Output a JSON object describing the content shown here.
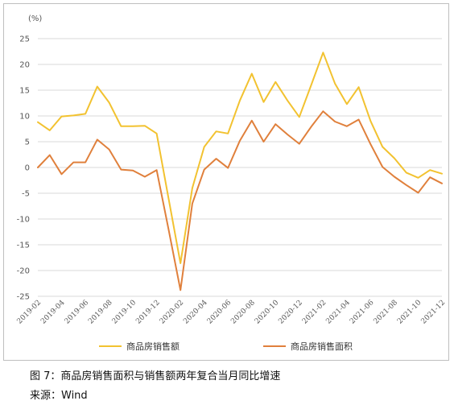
{
  "chart_data": {
    "type": "line",
    "unit": "(%)",
    "ylim": [
      -25,
      25
    ],
    "ytick_values": [
      25,
      20,
      15,
      10,
      5,
      0,
      -5,
      -10,
      -15,
      -20,
      -25
    ],
    "ytick_labels": [
      "25",
      "20",
      "15",
      "10",
      "5",
      "0",
      "-5",
      "-10",
      "-15",
      "-20",
      "-25"
    ],
    "grid": true,
    "legend_position": "bottom",
    "x": [
      "2019-02",
      "2019-03",
      "2019-04",
      "2019-05",
      "2019-06",
      "2019-07",
      "2019-08",
      "2019-09",
      "2019-10",
      "2019-11",
      "2019-12",
      "2020-01",
      "2020-02",
      "2020-03",
      "2020-04",
      "2020-05",
      "2020-06",
      "2020-07",
      "2020-08",
      "2020-09",
      "2020-10",
      "2020-11",
      "2020-12",
      "2021-01",
      "2021-02",
      "2021-03",
      "2021-04",
      "2021-05",
      "2021-06",
      "2021-07",
      "2021-08",
      "2021-09",
      "2021-10",
      "2021-11",
      "2021-12"
    ],
    "xtick_labels": [
      "2019-02",
      "2019-04",
      "2019-06",
      "2019-08",
      "2019-10",
      "2019-12",
      "2020-02",
      "2020-04",
      "2020-06",
      "2020-08",
      "2020-10",
      "2020-12",
      "2021-02",
      "2021-04",
      "2021-06",
      "2021-08",
      "2021-10",
      "2021-12"
    ],
    "series": [
      {
        "name": "商品房销售额",
        "color": "#f2c230",
        "values": [
          8.8,
          7.2,
          9.9,
          10.1,
          10.4,
          15.7,
          12.6,
          8.0,
          8.0,
          8.1,
          6.6,
          -6.0,
          -18.6,
          -4.0,
          4.0,
          7.0,
          6.6,
          13.0,
          18.2,
          12.7,
          16.6,
          13.0,
          9.8,
          16.0,
          22.3,
          16.3,
          12.3,
          15.6,
          9.0,
          4.0,
          1.8,
          -1.0,
          -2.0,
          -0.5,
          -1.2
        ]
      },
      {
        "name": "商品房销售面积",
        "color": "#e0803c",
        "values": [
          0.0,
          2.4,
          -1.3,
          1.0,
          1.0,
          5.4,
          3.5,
          -0.4,
          -0.6,
          -1.8,
          -0.5,
          -12.0,
          -23.8,
          -7.0,
          -0.4,
          1.7,
          -0.1,
          5.2,
          9.1,
          5.0,
          8.4,
          6.4,
          4.6,
          7.9,
          10.9,
          8.9,
          8.0,
          9.3,
          4.5,
          0.1,
          -1.8,
          -3.4,
          -4.9,
          -1.9,
          -3.1
        ]
      }
    ]
  },
  "caption": "图 7：商品房销售面积与销售额两年复合当月同比增速",
  "source": "来源：Wind"
}
